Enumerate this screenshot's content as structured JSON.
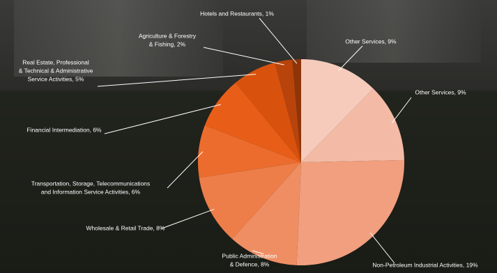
{
  "chart_data": {
    "type": "pie",
    "value_labels": [
      [
        "Other Services, 9%"
      ],
      [
        "Other Services, 9%"
      ],
      [
        "Non-Petroleum Industrial Activities, 19%"
      ],
      [
        "Public Administration",
        "& Defence, 8%"
      ],
      [
        "Wholesale & Retail Trade, 8%"
      ],
      [
        "Transportation, Storage, Telecommunications",
        "and Information Service Activities, 6%"
      ],
      [
        "Financial Intermediation, 6%"
      ],
      [
        "Real Estate, Professional",
        "& Technical & Administrative",
        "Service Activities, 5%"
      ],
      [
        "Agriculture & Forestry",
        "& Fishing, 2%"
      ],
      [
        "Hotels and Restaurants, 1%"
      ]
    ],
    "values": [
      9,
      9,
      19,
      8,
      8,
      6,
      6,
      5,
      2,
      1
    ],
    "colors": [
      "#f6cbbb",
      "#f3bba6",
      "#f19f7e",
      "#f08e63",
      "#ee7e49",
      "#ec6c2d",
      "#e85e18",
      "#d8520e",
      "#b9440b",
      "#8e3409"
    ]
  }
}
